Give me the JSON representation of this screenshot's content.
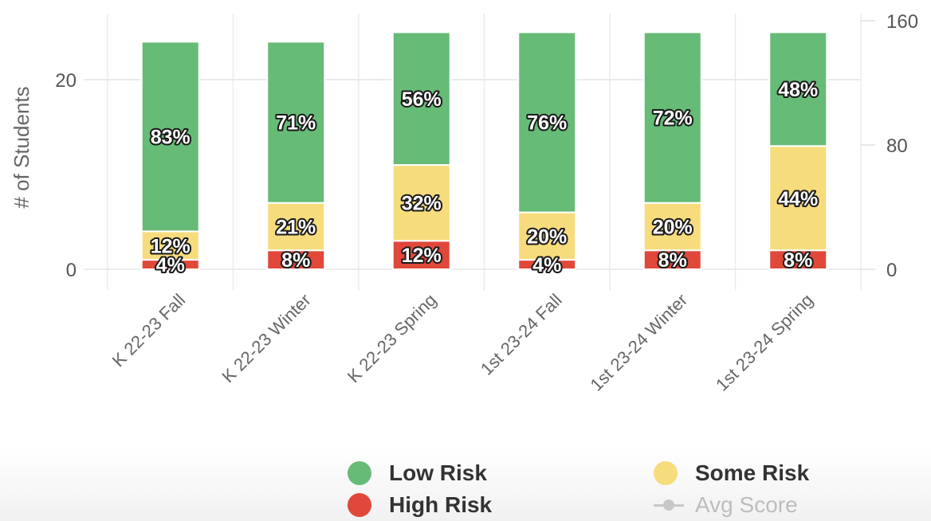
{
  "chart_data": {
    "type": "bar",
    "stacked": true,
    "categories": [
      "K 22-23 Fall",
      "K 22-23 Winter",
      "K 22-23 Spring",
      "1st 23-24 Fall",
      "1st 23-24 Winter",
      "1st 23-24 Spring"
    ],
    "series": [
      {
        "name": "High Risk",
        "color": "#e0483a",
        "values": [
          1,
          2,
          3,
          1,
          2,
          2
        ],
        "labels": [
          "4%",
          "8%",
          "12%",
          "4%",
          "8%",
          "8%"
        ]
      },
      {
        "name": "Some Risk",
        "color": "#f6dc7c",
        "values": [
          3,
          5,
          8,
          5,
          5,
          11
        ],
        "labels": [
          "12%",
          "21%",
          "32%",
          "20%",
          "20%",
          "44%"
        ]
      },
      {
        "name": "Low Risk",
        "color": "#66bb77",
        "values": [
          20,
          17,
          14,
          19,
          18,
          12
        ],
        "labels": [
          "83%",
          "71%",
          "56%",
          "76%",
          "72%",
          "48%"
        ]
      }
    ],
    "ylabel": "# of Students",
    "ylim": [
      0,
      27
    ],
    "yticks": [
      0,
      20
    ],
    "y2ticks": [
      0,
      80,
      160
    ],
    "y2lim": [
      0,
      160
    ],
    "grid": true,
    "legend_position": "bottom",
    "legend": [
      {
        "name": "Low Risk",
        "color": "#66bb77",
        "kind": "dot",
        "active": true
      },
      {
        "name": "Some Risk",
        "color": "#f6dc7c",
        "kind": "dot",
        "active": true
      },
      {
        "name": "High Risk",
        "color": "#e0483a",
        "kind": "dot",
        "active": true
      },
      {
        "name": "Avg Score",
        "color": "#c8c8c8",
        "kind": "line",
        "active": false
      }
    ]
  }
}
